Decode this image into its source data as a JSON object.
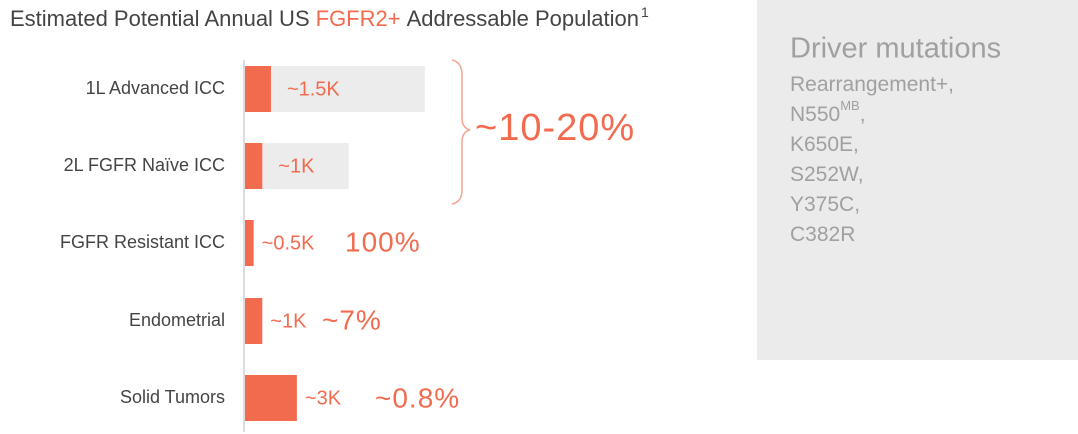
{
  "chart_data": {
    "type": "bar",
    "orientation": "horizontal",
    "title_parts": [
      "Estimated Potential Annual US",
      "FGFR2+",
      "Addressable Population",
      "1"
    ],
    "title_colors": [
      "#444444",
      "#f26b4f",
      "#444444",
      "#444444"
    ],
    "categories": [
      "1L Advanced ICC",
      "2L FGFR Naïve ICC",
      "FGFR Resistant ICC",
      "Endometrial",
      "Solid Tumors"
    ],
    "series": [
      {
        "color": "#ececec",
        "values": [
          10.4,
          6,
          null,
          null,
          null
        ]
      },
      {
        "color": "#f26b4f",
        "values": [
          1.5,
          1,
          0.5,
          1,
          3
        ],
        "value_labels": [
          "~1.5K",
          "~1K",
          "~0.5K",
          "~1K",
          "~3K"
        ]
      }
    ],
    "xlim": [
      0,
      20
    ],
    "annotations": [
      {
        "text": "~10-20%",
        "rows": [
          0,
          1
        ]
      },
      {
        "text": "100%",
        "rows": [
          2
        ]
      },
      {
        "text": "~7%",
        "rows": [
          3
        ]
      },
      {
        "text": "~0.8%",
        "rows": [
          4
        ]
      }
    ],
    "side_panel": {
      "heading": "Driver mutations",
      "items": [
        {
          "text": "Rearrangement+,"
        },
        {
          "text": "N550",
          "sup": "MB",
          "suffix": ","
        },
        {
          "text": "K650E,"
        },
        {
          "text": "S252W,"
        },
        {
          "text": "Y375C,"
        },
        {
          "text": "C382R"
        }
      ]
    }
  }
}
